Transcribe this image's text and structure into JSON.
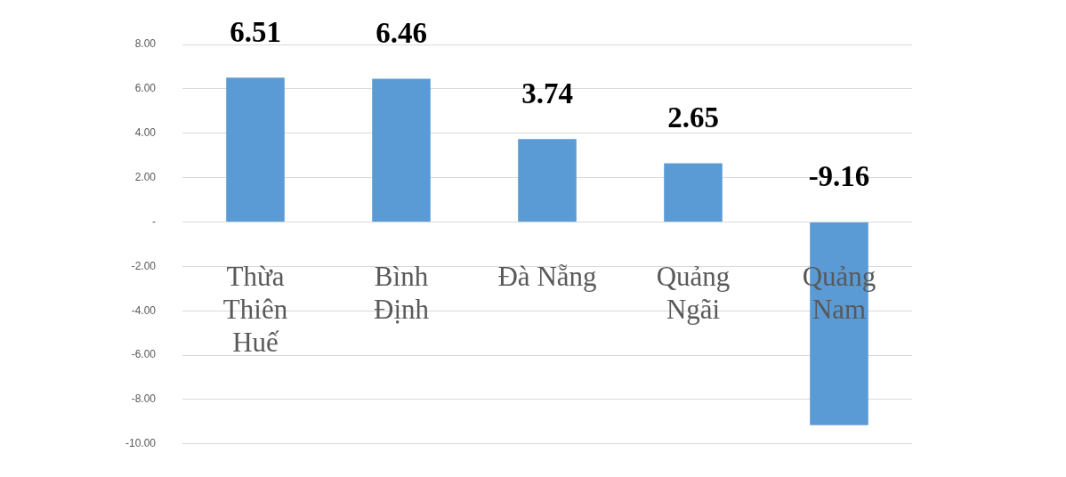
{
  "chart_data": {
    "type": "bar",
    "categories": [
      "Thừa Thiên Huế",
      "Bình Định",
      "Đà Nẵng",
      "Quảng Ngãi",
      "Quảng Nam"
    ],
    "values": [
      6.51,
      6.46,
      3.74,
      2.65,
      -9.16
    ],
    "color": "#5b9bd5",
    "ylim": [
      -10,
      8
    ],
    "yticks": [
      {
        "value": -10,
        "label": "-10.00"
      },
      {
        "value": -8,
        "label": "-8.00"
      },
      {
        "value": -6,
        "label": "-6.00"
      },
      {
        "value": -4,
        "label": "-4.00"
      },
      {
        "value": -2,
        "label": "-2.00"
      },
      {
        "value": 0,
        "label": "-"
      },
      {
        "value": 2,
        "label": "2.00"
      },
      {
        "value": 4,
        "label": "4.00"
      },
      {
        "value": 6,
        "label": "6.00"
      },
      {
        "value": 8,
        "label": "8.00"
      }
    ],
    "grid": "y",
    "data_labels": true
  }
}
